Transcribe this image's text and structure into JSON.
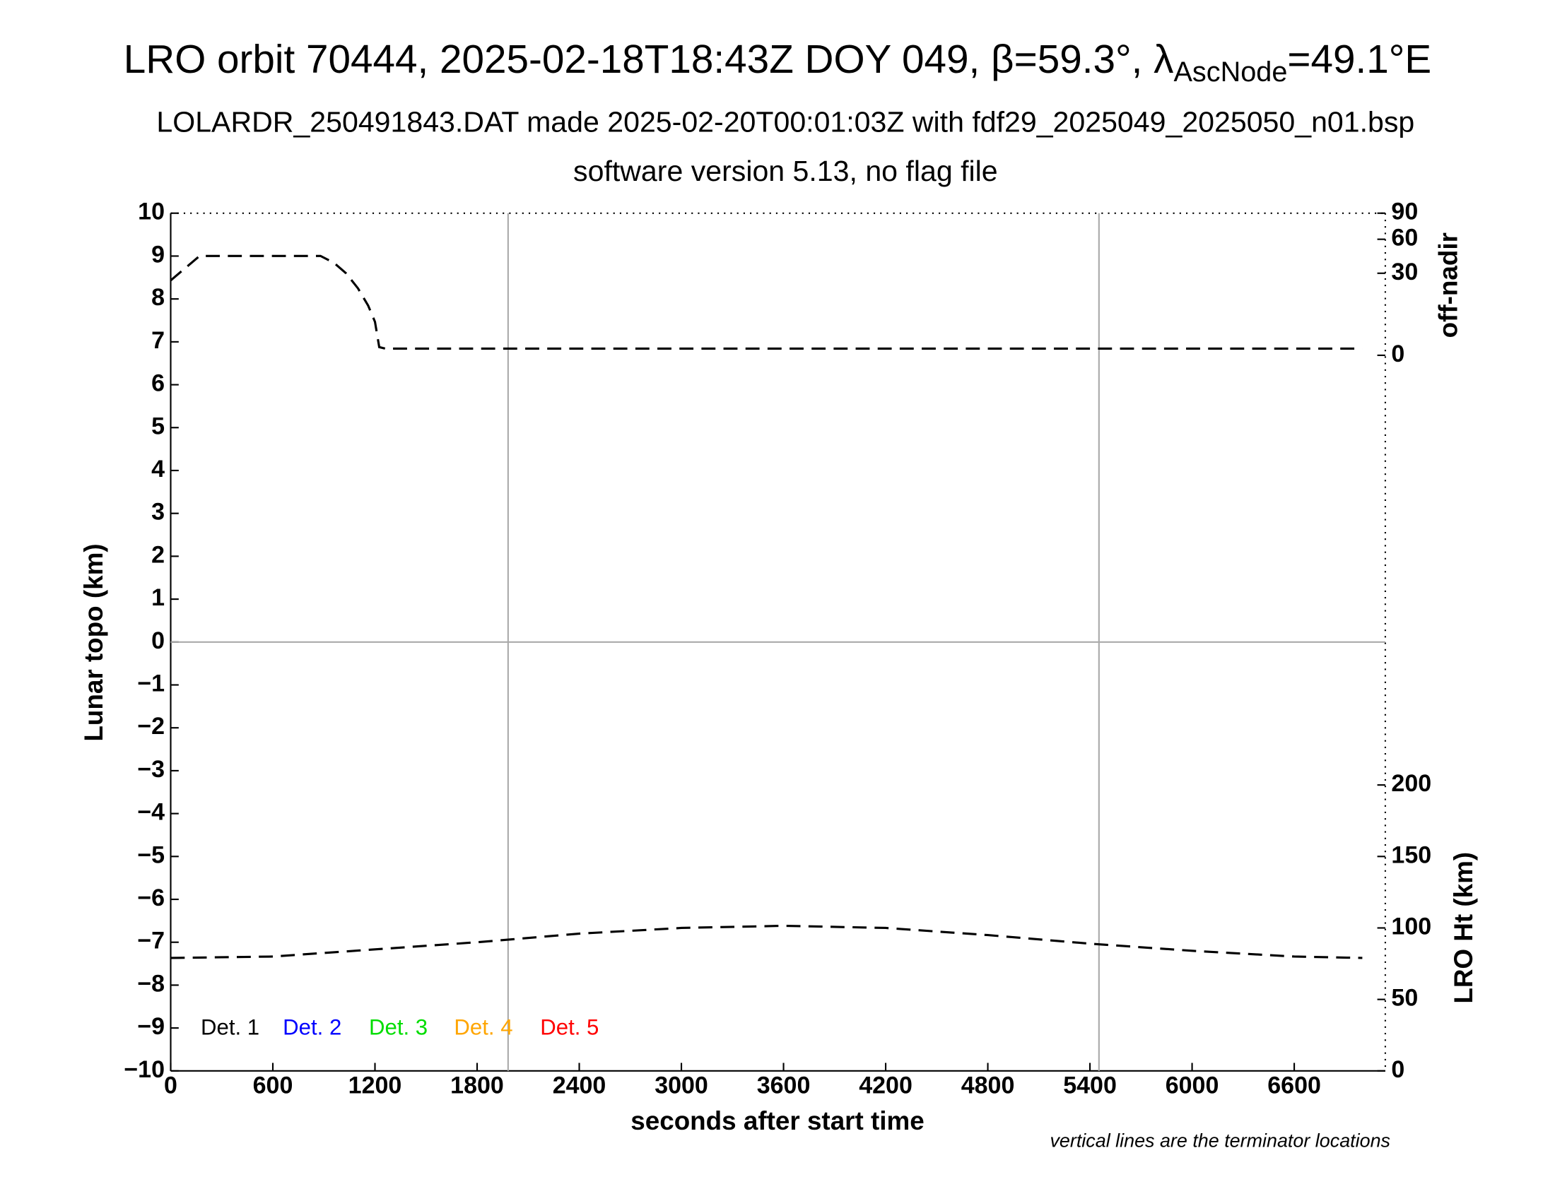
{
  "chart_data": {
    "type": "line",
    "title_parts": [
      "LRO orbit 70444, 2025-02-18T18:43Z DOY 049, β=59.3°, λ",
      "AscNode",
      "=49.1°E"
    ],
    "subtitle": "LOLARDR_250491843.DAT made 2025-02-20T00:01:03Z with fdf29_2025049_2025050_n01.bsp",
    "subtitle2": "software version 5.13, no flag file",
    "xlabel": "seconds after start time",
    "ylabel": "Lunar topo (km)",
    "y2label": "off-nadir",
    "y3label": "LRO Ht (km)",
    "note": "vertical lines are the terminator locations",
    "xlim": [
      0,
      7135
    ],
    "xticks": [
      0,
      600,
      1200,
      1800,
      2400,
      3000,
      3600,
      4200,
      4800,
      5400,
      6000,
      6600
    ],
    "ylim": [
      -10,
      10
    ],
    "yticks": [
      {
        "value": -10,
        "label": "−10"
      },
      {
        "value": -9,
        "label": "−9"
      },
      {
        "value": -8,
        "label": "−8"
      },
      {
        "value": -7,
        "label": "−7"
      },
      {
        "value": -6,
        "label": "−6"
      },
      {
        "value": -5,
        "label": "−5"
      },
      {
        "value": -4,
        "label": "−4"
      },
      {
        "value": -3,
        "label": "−3"
      },
      {
        "value": -2,
        "label": "−2"
      },
      {
        "value": -1,
        "label": "−1"
      },
      0,
      1,
      2,
      3,
      4,
      5,
      6,
      7,
      8,
      9,
      10
    ],
    "y2lim": [
      0,
      90
    ],
    "y2scale": "sqrt",
    "y2ticks": [
      0,
      30,
      60,
      90
    ],
    "y3lim": [
      0,
      600
    ],
    "y3ticks": [
      0,
      50,
      100,
      150,
      200
    ],
    "terminators": [
      1982,
      5453
    ],
    "zero_line": true,
    "series": [
      {
        "axis": "y2",
        "color": "#000000",
        "x": [
          0,
          170,
          880,
          960,
          1030,
          1100,
          1160,
          1200,
          1225,
          1260,
          7000
        ],
        "values": [
          25,
          44,
          44,
          38,
          30,
          20,
          11,
          5,
          0.3,
          0.2,
          0.2
        ]
      },
      {
        "axis": "y3",
        "color": "#000000",
        "x": [
          0,
          600,
          1200,
          1800,
          2400,
          3000,
          3600,
          4200,
          4800,
          5400,
          6000,
          6600,
          7000
        ],
        "values": [
          79,
          80,
          85,
          90,
          96,
          100,
          101.5,
          100,
          95,
          89,
          84,
          80,
          79
        ]
      }
    ],
    "legend": [
      {
        "name": "Det. 1",
        "color": "#000000"
      },
      {
        "name": "Det. 2",
        "color": "#0000ff"
      },
      {
        "name": "Det. 3",
        "color": "#00dd00"
      },
      {
        "name": "Det. 4",
        "color": "#ffa500"
      },
      {
        "name": "Det. 5",
        "color": "#ff0000"
      }
    ]
  }
}
